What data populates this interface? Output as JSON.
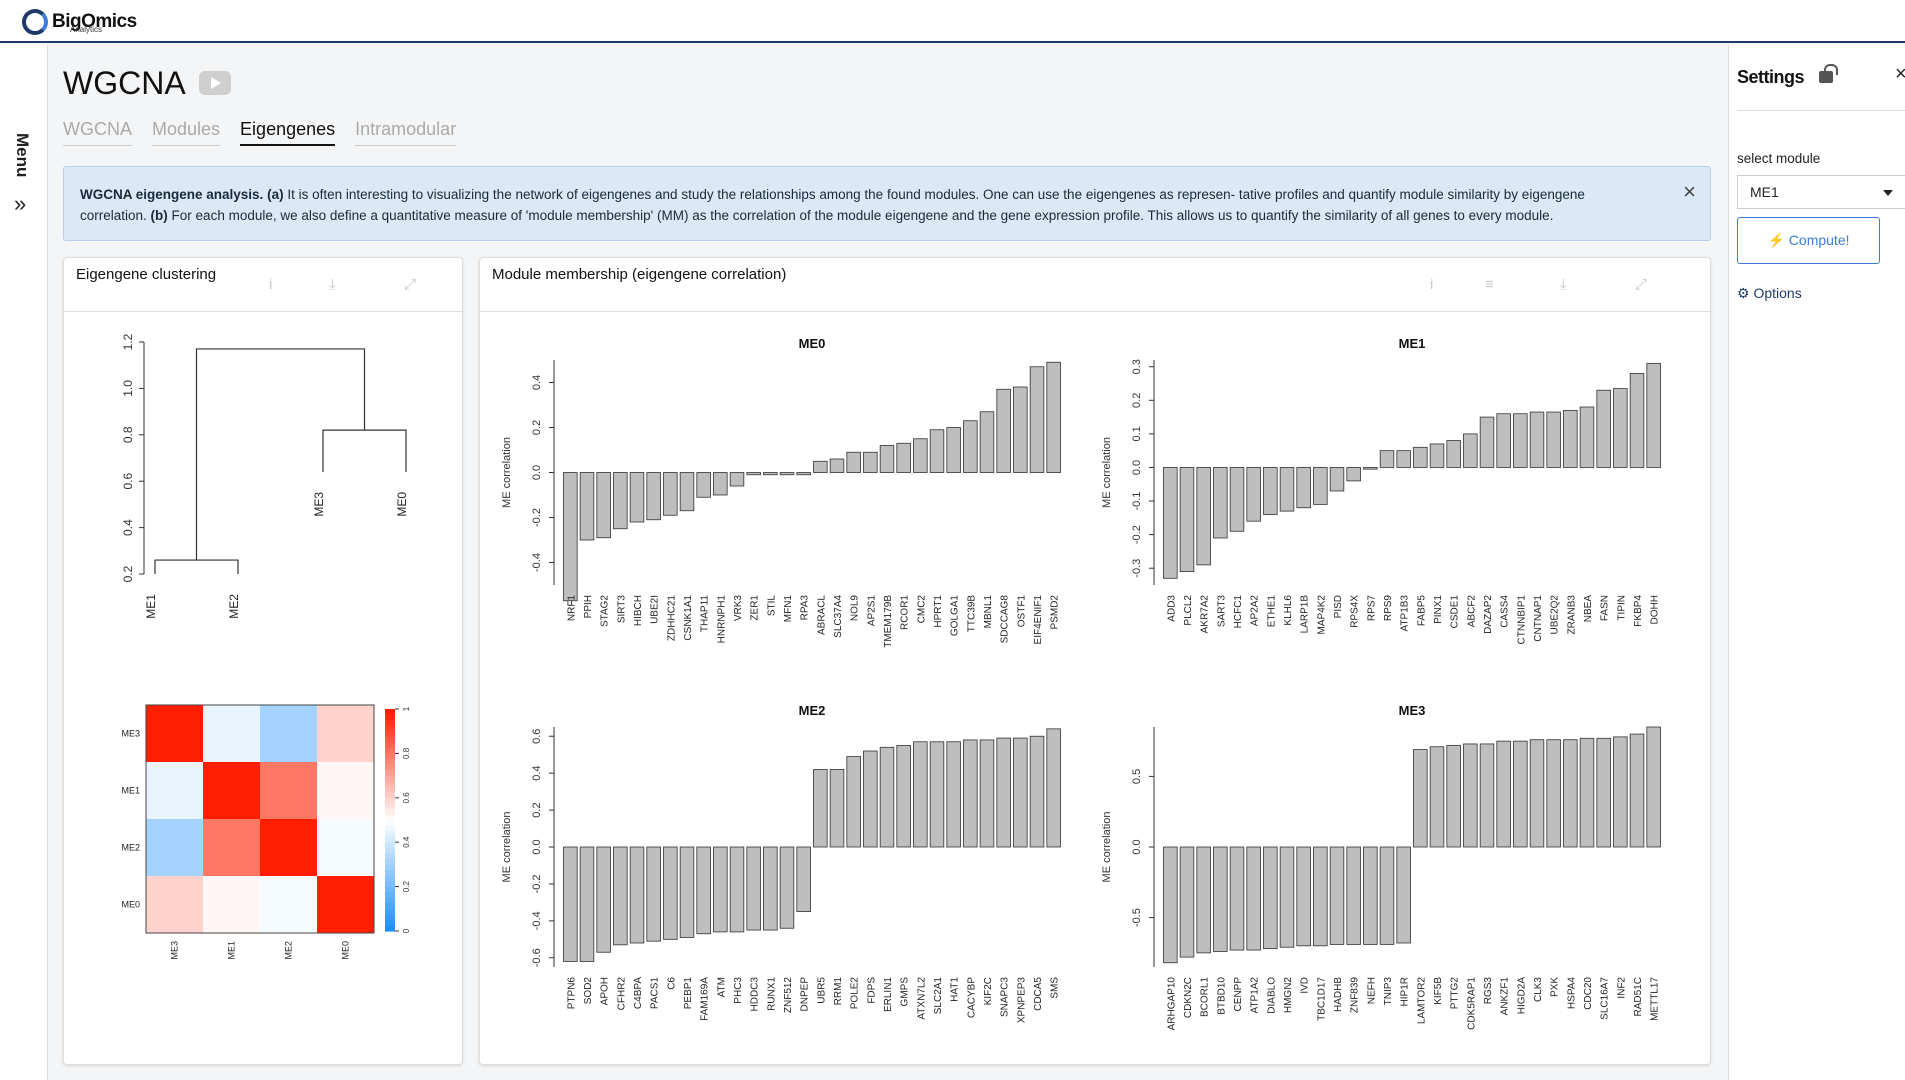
{
  "app": {
    "logo_text": "BigOmics",
    "logo_sub": "Analytics",
    "menu_label": "Menu",
    "menu_chevron": "»"
  },
  "page": {
    "title": "WGCNA",
    "tabs": [
      {
        "label": "WGCNA",
        "active": false
      },
      {
        "label": "Modules",
        "active": false
      },
      {
        "label": "Eigengenes",
        "active": true
      },
      {
        "label": "Intramodular",
        "active": false
      }
    ]
  },
  "info": {
    "heading": "WGCNA eigengene analysis.",
    "a_tag": "(a)",
    "a_text": " It is often interesting to visualizing the network of eigengenes and study the relationships among the found modules. One can use the eigengenes as represen- tative profiles and quantify module similarity by eigengene correlation. ",
    "b_tag": "(b)",
    "b_text": " For each module, we also define a quantitative measure of 'module membership' (MM) as the correlation of the module eigengene and the gene expression profile. This allows us to quantify the similarity of all genes to every module.",
    "close": "×"
  },
  "cards": {
    "clustering_title": "Eigengene clustering",
    "membership_title": "Module membership (eigengene correlation)",
    "icon_info": "i",
    "icon_menu": "≡",
    "icon_download": "⤓",
    "icon_expand": "⤢"
  },
  "settings": {
    "title": "Settings",
    "close": "×",
    "select_label": "select module",
    "selected_module": "ME1",
    "compute_label": "⚡ Compute!",
    "options_label": "⚙ Options"
  },
  "chart_data": [
    {
      "type": "dendrogram",
      "leaves": [
        "ME1",
        "ME2",
        "ME3",
        "ME0"
      ],
      "ylim": [
        0.2,
        1.2
      ],
      "yticks": [
        "0.2",
        "0.4",
        "0.6",
        "0.8",
        "1.0",
        "1.2"
      ],
      "merges": [
        {
          "left": "ME1",
          "right": "ME2",
          "height": 0.26
        },
        {
          "left": "ME3",
          "right": "ME0",
          "height": 0.82
        },
        {
          "left": "ME1,ME2",
          "right": "ME3,ME0",
          "height": 1.17
        }
      ]
    },
    {
      "type": "heatmap",
      "rows": [
        "ME3",
        "ME1",
        "ME2",
        "ME0"
      ],
      "cols": [
        "ME3",
        "ME1",
        "ME2",
        "ME0"
      ],
      "values": [
        [
          1.0,
          0.45,
          0.3,
          0.6
        ],
        [
          0.45,
          1.0,
          0.8,
          0.52
        ],
        [
          0.3,
          0.8,
          1.0,
          0.48
        ],
        [
          0.6,
          0.52,
          0.48,
          1.0
        ]
      ],
      "scale": [
        0,
        1
      ],
      "scale_ticks": [
        "0",
        "0.2",
        "0.4",
        "0.6",
        "0.8",
        "1"
      ]
    },
    {
      "type": "bar",
      "title": "ME0",
      "ylabel": "ME correlation",
      "ylim": [
        -0.5,
        0.5
      ],
      "yticks": [
        "-0.4",
        "-0.2",
        "0.0",
        "0.2",
        "0.4"
      ],
      "categories": [
        "NRF1",
        "PPIH",
        "STAG2",
        "SIRT3",
        "HIBCH",
        "UBE2I",
        "ZDHHC21",
        "CSNK1A1",
        "THAP11",
        "HNRNPH1",
        "VRK3",
        "ZER1",
        "STIL",
        "MFN1",
        "RPA3",
        "ABRACL",
        "SLC37A4",
        "NOL9",
        "AP2S1",
        "TMEM179B",
        "RCOR1",
        "CMC2",
        "HPRT1",
        "GOLGA1",
        "TTC39B",
        "MBNL1",
        "SDCCAG8",
        "OSTF1",
        "EIF4ENIF1",
        "PSMD2"
      ],
      "values": [
        -0.57,
        -0.3,
        -0.29,
        -0.25,
        -0.22,
        -0.21,
        -0.19,
        -0.17,
        -0.11,
        -0.1,
        -0.06,
        -0.01,
        -0.01,
        -0.01,
        -0.01,
        0.05,
        0.06,
        0.09,
        0.09,
        0.12,
        0.13,
        0.15,
        0.19,
        0.2,
        0.23,
        0.27,
        0.37,
        0.38,
        0.47,
        0.49
      ]
    },
    {
      "type": "bar",
      "title": "ME1",
      "ylabel": "ME correlation",
      "ylim": [
        -0.35,
        0.32
      ],
      "yticks": [
        "-0.3",
        "-0.2",
        "-0.1",
        "0.0",
        "0.1",
        "0.2",
        "0.3"
      ],
      "categories": [
        "ADD3",
        "PLCL2",
        "AKR7A2",
        "SART3",
        "HCFC1",
        "AP2A2",
        "ETHE1",
        "KLHL6",
        "LARP1B",
        "MAP4K2",
        "PISD",
        "RPS4X",
        "RPS7",
        "RPS9",
        "ATP1B3",
        "FABP5",
        "PINX1",
        "CSDE1",
        "ABCF2",
        "DAZAP2",
        "CASS4",
        "CTNNBIP1",
        "CNTNAP1",
        "UBE2Q2",
        "ZRANB3",
        "NBEA",
        "FASN",
        "TIPIN",
        "FKBP4",
        "DOHH"
      ],
      "values": [
        -0.33,
        -0.31,
        -0.29,
        -0.21,
        -0.19,
        -0.16,
        -0.14,
        -0.13,
        -0.12,
        -0.11,
        -0.07,
        -0.04,
        -0.005,
        0.05,
        0.05,
        0.06,
        0.07,
        0.08,
        0.1,
        0.15,
        0.16,
        0.16,
        0.165,
        0.165,
        0.17,
        0.18,
        0.23,
        0.235,
        0.28,
        0.31
      ]
    },
    {
      "type": "bar",
      "title": "ME2",
      "ylabel": "ME correlation",
      "ylim": [
        -0.65,
        0.65
      ],
      "yticks": [
        "-0.6",
        "-0.4",
        "-0.2",
        "0.0",
        "0.2",
        "0.4",
        "0.6"
      ],
      "categories": [
        "PTPN6",
        "SOD2",
        "APOH",
        "CFHR2",
        "C4BPA",
        "PACS1",
        "C6",
        "PEBP1",
        "FAM169A",
        "ATM",
        "PHC3",
        "HDDC3",
        "RUNX1",
        "ZNF512",
        "DNPEP",
        "UBR5",
        "RRM1",
        "POLE2",
        "FDPS",
        "ERLIN1",
        "GMPS",
        "ATXN7L2",
        "SLC2A1",
        "HAT1",
        "CACYBP",
        "KIF2C",
        "SNAPC3",
        "XPNPEP3",
        "CDCA5",
        "SMS"
      ],
      "values": [
        -0.62,
        -0.62,
        -0.57,
        -0.53,
        -0.52,
        -0.51,
        -0.5,
        -0.49,
        -0.47,
        -0.46,
        -0.46,
        -0.45,
        -0.45,
        -0.44,
        -0.35,
        0.42,
        0.42,
        0.49,
        0.52,
        0.54,
        0.55,
        0.57,
        0.57,
        0.57,
        0.58,
        0.58,
        0.59,
        0.59,
        0.6,
        0.64
      ]
    },
    {
      "type": "bar",
      "title": "ME3",
      "ylabel": "ME correlation",
      "ylim": [
        -0.85,
        0.85
      ],
      "yticks": [
        "-0.5",
        "0.0",
        "0.5"
      ],
      "categories": [
        "ARHGAP10",
        "CDKN2C",
        "BCORL1",
        "BTBD10",
        "CENPP",
        "ATP1A2",
        "DIABLO",
        "HMGN2",
        "IVD",
        "TBC1D17",
        "HADHB",
        "ZNF839",
        "NEFH",
        "TNIP3",
        "HIP1R",
        "LAMTOR2",
        "KIF5B",
        "PTTG2",
        "CDK5RAP1",
        "RGS3",
        "ANKZF1",
        "HIGD2A",
        "CLK3",
        "PXK",
        "HSPA4",
        "CDC20",
        "SLC16A7",
        "INF2",
        "RAD51C",
        "METTL17"
      ],
      "values": [
        -0.82,
        -0.78,
        -0.75,
        -0.74,
        -0.73,
        -0.73,
        -0.72,
        -0.71,
        -0.7,
        -0.7,
        -0.69,
        -0.69,
        -0.69,
        -0.69,
        -0.68,
        0.69,
        0.71,
        0.72,
        0.73,
        0.73,
        0.75,
        0.75,
        0.76,
        0.76,
        0.76,
        0.77,
        0.77,
        0.78,
        0.8,
        0.85
      ]
    }
  ]
}
